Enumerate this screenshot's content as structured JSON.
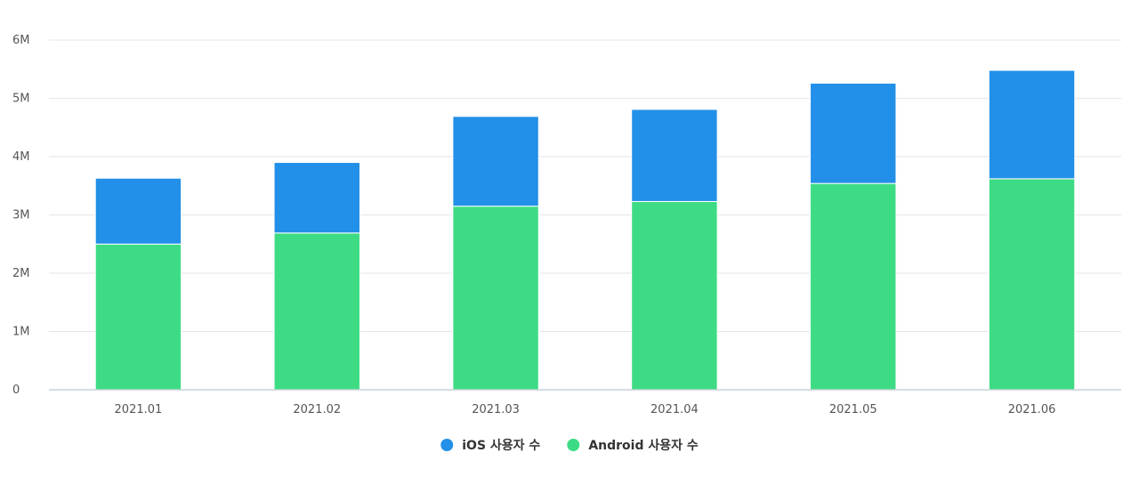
{
  "chart_data": {
    "type": "bar",
    "stacked": true,
    "categories": [
      "2021.01",
      "2021.02",
      "2021.03",
      "2021.04",
      "2021.05",
      "2021.06"
    ],
    "series": [
      {
        "name": "Android 사용자 수",
        "color": "#3ddc84",
        "values": [
          2.5,
          2.69,
          3.15,
          3.23,
          3.54,
          3.62
        ]
      },
      {
        "name": "iOS 사용자 수",
        "color": "#2290e8",
        "values": [
          1.13,
          1.21,
          1.54,
          1.58,
          1.72,
          1.86
        ]
      }
    ],
    "y_ticks": [
      "0",
      "1M",
      "2M",
      "3M",
      "4M",
      "5M",
      "6M"
    ],
    "ylim": [
      0,
      6
    ],
    "y_unit": "M",
    "grid": true,
    "legend": {
      "placement": "bottom-center",
      "order": [
        "iOS 사용자 수",
        "Android 사용자 수"
      ]
    },
    "title": "",
    "xlabel": "",
    "ylabel": ""
  }
}
